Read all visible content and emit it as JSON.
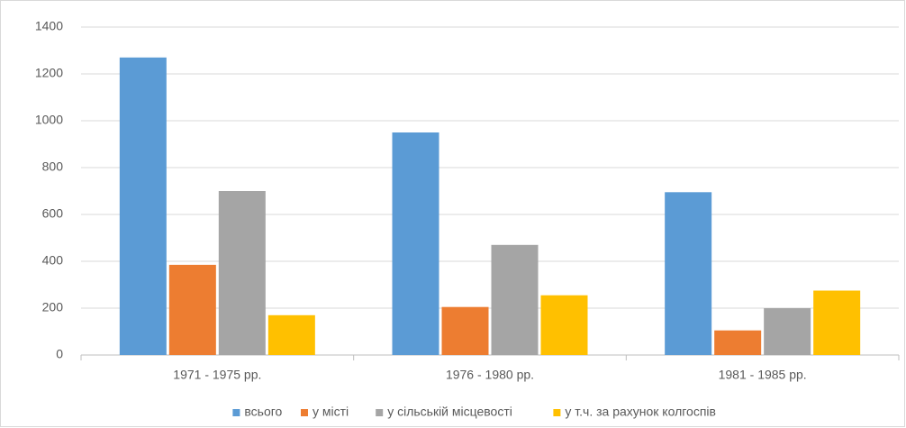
{
  "chart_data": {
    "type": "bar",
    "categories": [
      "1971 - 1975 рр.",
      "1976 - 1980 рр.",
      "1981 - 1985 рр."
    ],
    "series": [
      {
        "name": "всього",
        "color": "#5b9bd5",
        "values": [
          1270,
          950,
          695
        ]
      },
      {
        "name": "у місті",
        "color": "#ed7d31",
        "values": [
          385,
          205,
          105
        ]
      },
      {
        "name": "у сільській місцевості",
        "color": "#a5a5a5",
        "values": [
          700,
          470,
          200
        ]
      },
      {
        "name": "у т.ч. за рахунок колгоспів",
        "color": "#ffc000",
        "values": [
          170,
          255,
          275
        ]
      }
    ],
    "ylim": [
      0,
      1400
    ],
    "yticks": [
      0,
      200,
      400,
      600,
      800,
      1000,
      1200,
      1400
    ],
    "grid": true,
    "legend": "bottom"
  }
}
